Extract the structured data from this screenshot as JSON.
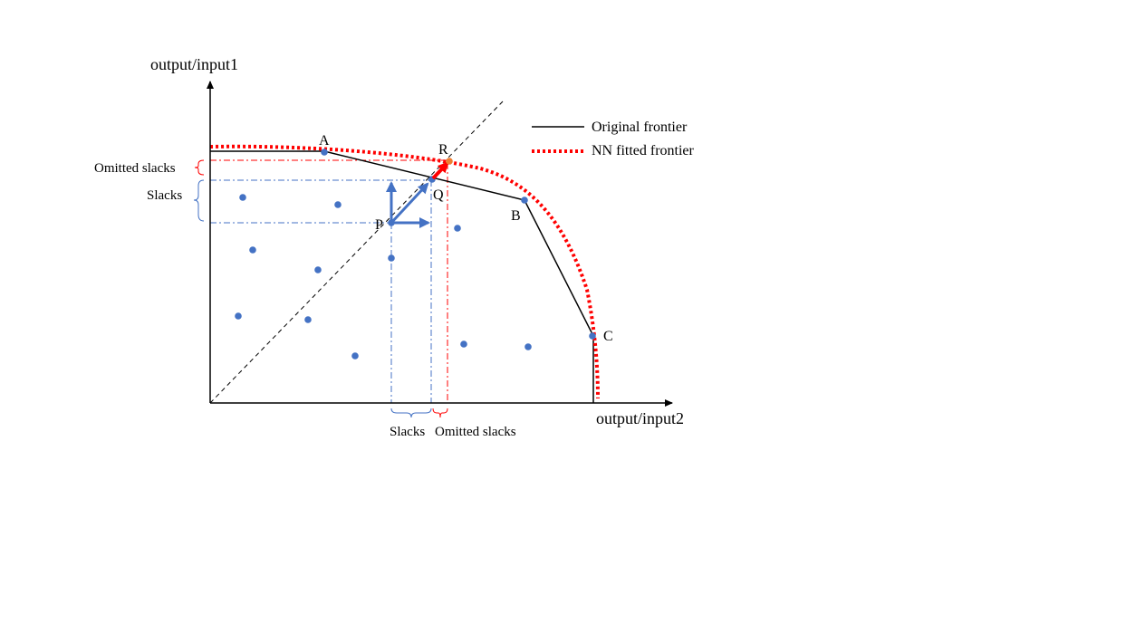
{
  "axes": {
    "y_label": "output/input1",
    "x_label": "output/input2"
  },
  "points": {
    "A": "A",
    "B": "B",
    "C": "C",
    "P": "P",
    "Q": "Q",
    "R": "R"
  },
  "legend": {
    "original": "Original frontier",
    "nn": "NN fitted frontier"
  },
  "annotations": {
    "omitted_slacks_y": "Omitted slacks",
    "slacks_y": "Slacks",
    "slacks_x": "Slacks",
    "omitted_slacks_x": "Omitted slacks"
  },
  "colors": {
    "original_frontier": "#000000",
    "nn_frontier": "#ff0000",
    "points": "#4472c4",
    "slack_lines": "#4472c4",
    "omitted_lines": "#ff0000",
    "arrow_R": "#ff0000",
    "point_R": "#ed7d31"
  }
}
